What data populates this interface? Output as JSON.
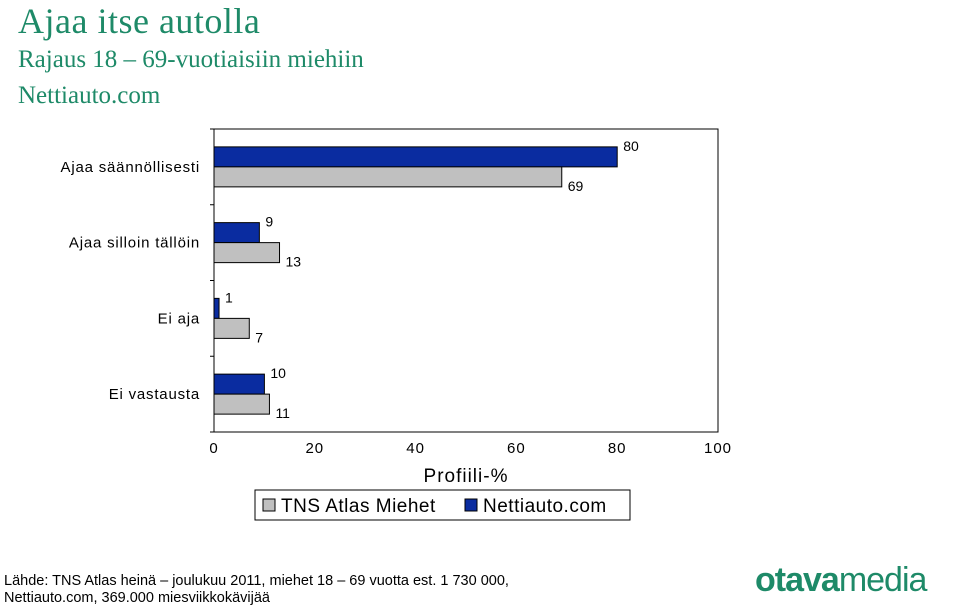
{
  "header": {
    "title": "Ajaa itse autolla",
    "subtitle_line1": "Rajaus 18 – 69-vuotiaisiin miehiin",
    "subtitle_line2": "Nettiauto.com"
  },
  "chart_data": {
    "type": "bar",
    "orientation": "horizontal",
    "categories": [
      "Ajaa säännöllisesti",
      "Ajaa silloin tällöin",
      "Ei aja",
      "Ei vastausta"
    ],
    "series": [
      {
        "name": "Nettiauto.com",
        "values": [
          80,
          9,
          1,
          10
        ],
        "color": "#0a2ca0"
      },
      {
        "name": "TNS Atlas Miehet",
        "values": [
          69,
          13,
          7,
          11
        ],
        "color": "#c0c0c0"
      }
    ],
    "xlabel": "Profiili-%",
    "xlim": [
      0,
      100
    ],
    "xticks": [
      0,
      20,
      40,
      60,
      80,
      100
    ],
    "grid": false,
    "legend_position": "bottom",
    "legend_order": [
      "TNS Atlas Miehet",
      "Nettiauto.com"
    ]
  },
  "footer": {
    "source_line1": "Lähde: TNS Atlas heinä – joulukuu 2011, miehet 18 – 69 vuotta est. 1 730 000,",
    "source_line2": "Nettiauto.com, 369.000 miesviikkokävijää",
    "logo_part1": "otava",
    "logo_part2": "media"
  }
}
